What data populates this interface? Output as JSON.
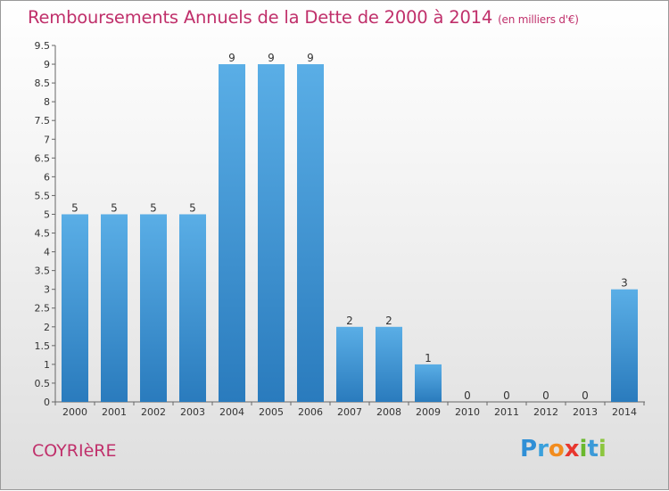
{
  "header": {
    "title": "Remboursements Annuels de la Dette de 2000 à 2014",
    "unit": "(en milliers d'€)"
  },
  "footer": {
    "commune": "COYRIèRE",
    "logo": "Proxiti"
  },
  "colors": {
    "title": "#c0306b",
    "bar_top": "#5aaee6",
    "bar_bottom": "#2a7bbd"
  },
  "chart_data": {
    "type": "bar",
    "title": "Remboursements Annuels de la Dette de 2000 à 2014",
    "xlabel": "",
    "ylabel": "",
    "categories": [
      "2000",
      "2001",
      "2002",
      "2003",
      "2004",
      "2005",
      "2006",
      "2007",
      "2008",
      "2009",
      "2010",
      "2011",
      "2012",
      "2013",
      "2014"
    ],
    "values": [
      5,
      5,
      5,
      5,
      9,
      9,
      9,
      2,
      2,
      1,
      0,
      0,
      0,
      0,
      3
    ],
    "ylim": [
      0,
      9.5
    ],
    "yticks": [
      0,
      0.5,
      1,
      1.5,
      2,
      2.5,
      3,
      3.5,
      4,
      4.5,
      5,
      5.5,
      6,
      6.5,
      7,
      7.5,
      8,
      8.5,
      9,
      9.5
    ],
    "grid": false
  }
}
